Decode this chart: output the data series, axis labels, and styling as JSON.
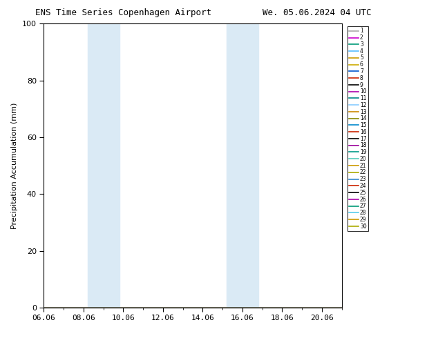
{
  "title_left": "ENS Time Series Copenhagen Airport",
  "title_right": "We. 05.06.2024 04 UTC",
  "ylabel": "Precipitation Accumulation (mm)",
  "ylim": [
    0,
    100
  ],
  "yticks": [
    0,
    20,
    40,
    60,
    80,
    100
  ],
  "xtick_labels": [
    "06.06",
    "08.06",
    "10.06",
    "12.06",
    "14.06",
    "16.06",
    "18.06",
    "20.06"
  ],
  "xtick_positions": [
    0,
    2,
    4,
    6,
    8,
    10,
    12,
    14
  ],
  "xlim": [
    0,
    15
  ],
  "shaded_bands": [
    {
      "x_start": 2.2,
      "x_end": 3.8
    },
    {
      "x_start": 9.2,
      "x_end": 10.8
    }
  ],
  "shade_color": "#daeaf5",
  "num_members": 30,
  "member_colors": [
    "#aaaaaa",
    "#cc00cc",
    "#009977",
    "#55bbff",
    "#cc9900",
    "#ccaa00",
    "#0055cc",
    "#cc2200",
    "#000000",
    "#aa00aa",
    "#008888",
    "#88ccff",
    "#cc8800",
    "#888800",
    "#0088cc",
    "#cc2200",
    "#000000",
    "#990099",
    "#009988",
    "#55ccbb",
    "#cc9900",
    "#aaaa00",
    "#3388cc",
    "#cc2200",
    "#000000",
    "#aa00aa",
    "#009977",
    "#55ccee",
    "#cc9900",
    "#aaaa00"
  ],
  "background_color": "#ffffff",
  "legend_fontsize": 5.5,
  "title_fontsize": 9,
  "ylabel_fontsize": 8,
  "tick_fontsize": 8
}
